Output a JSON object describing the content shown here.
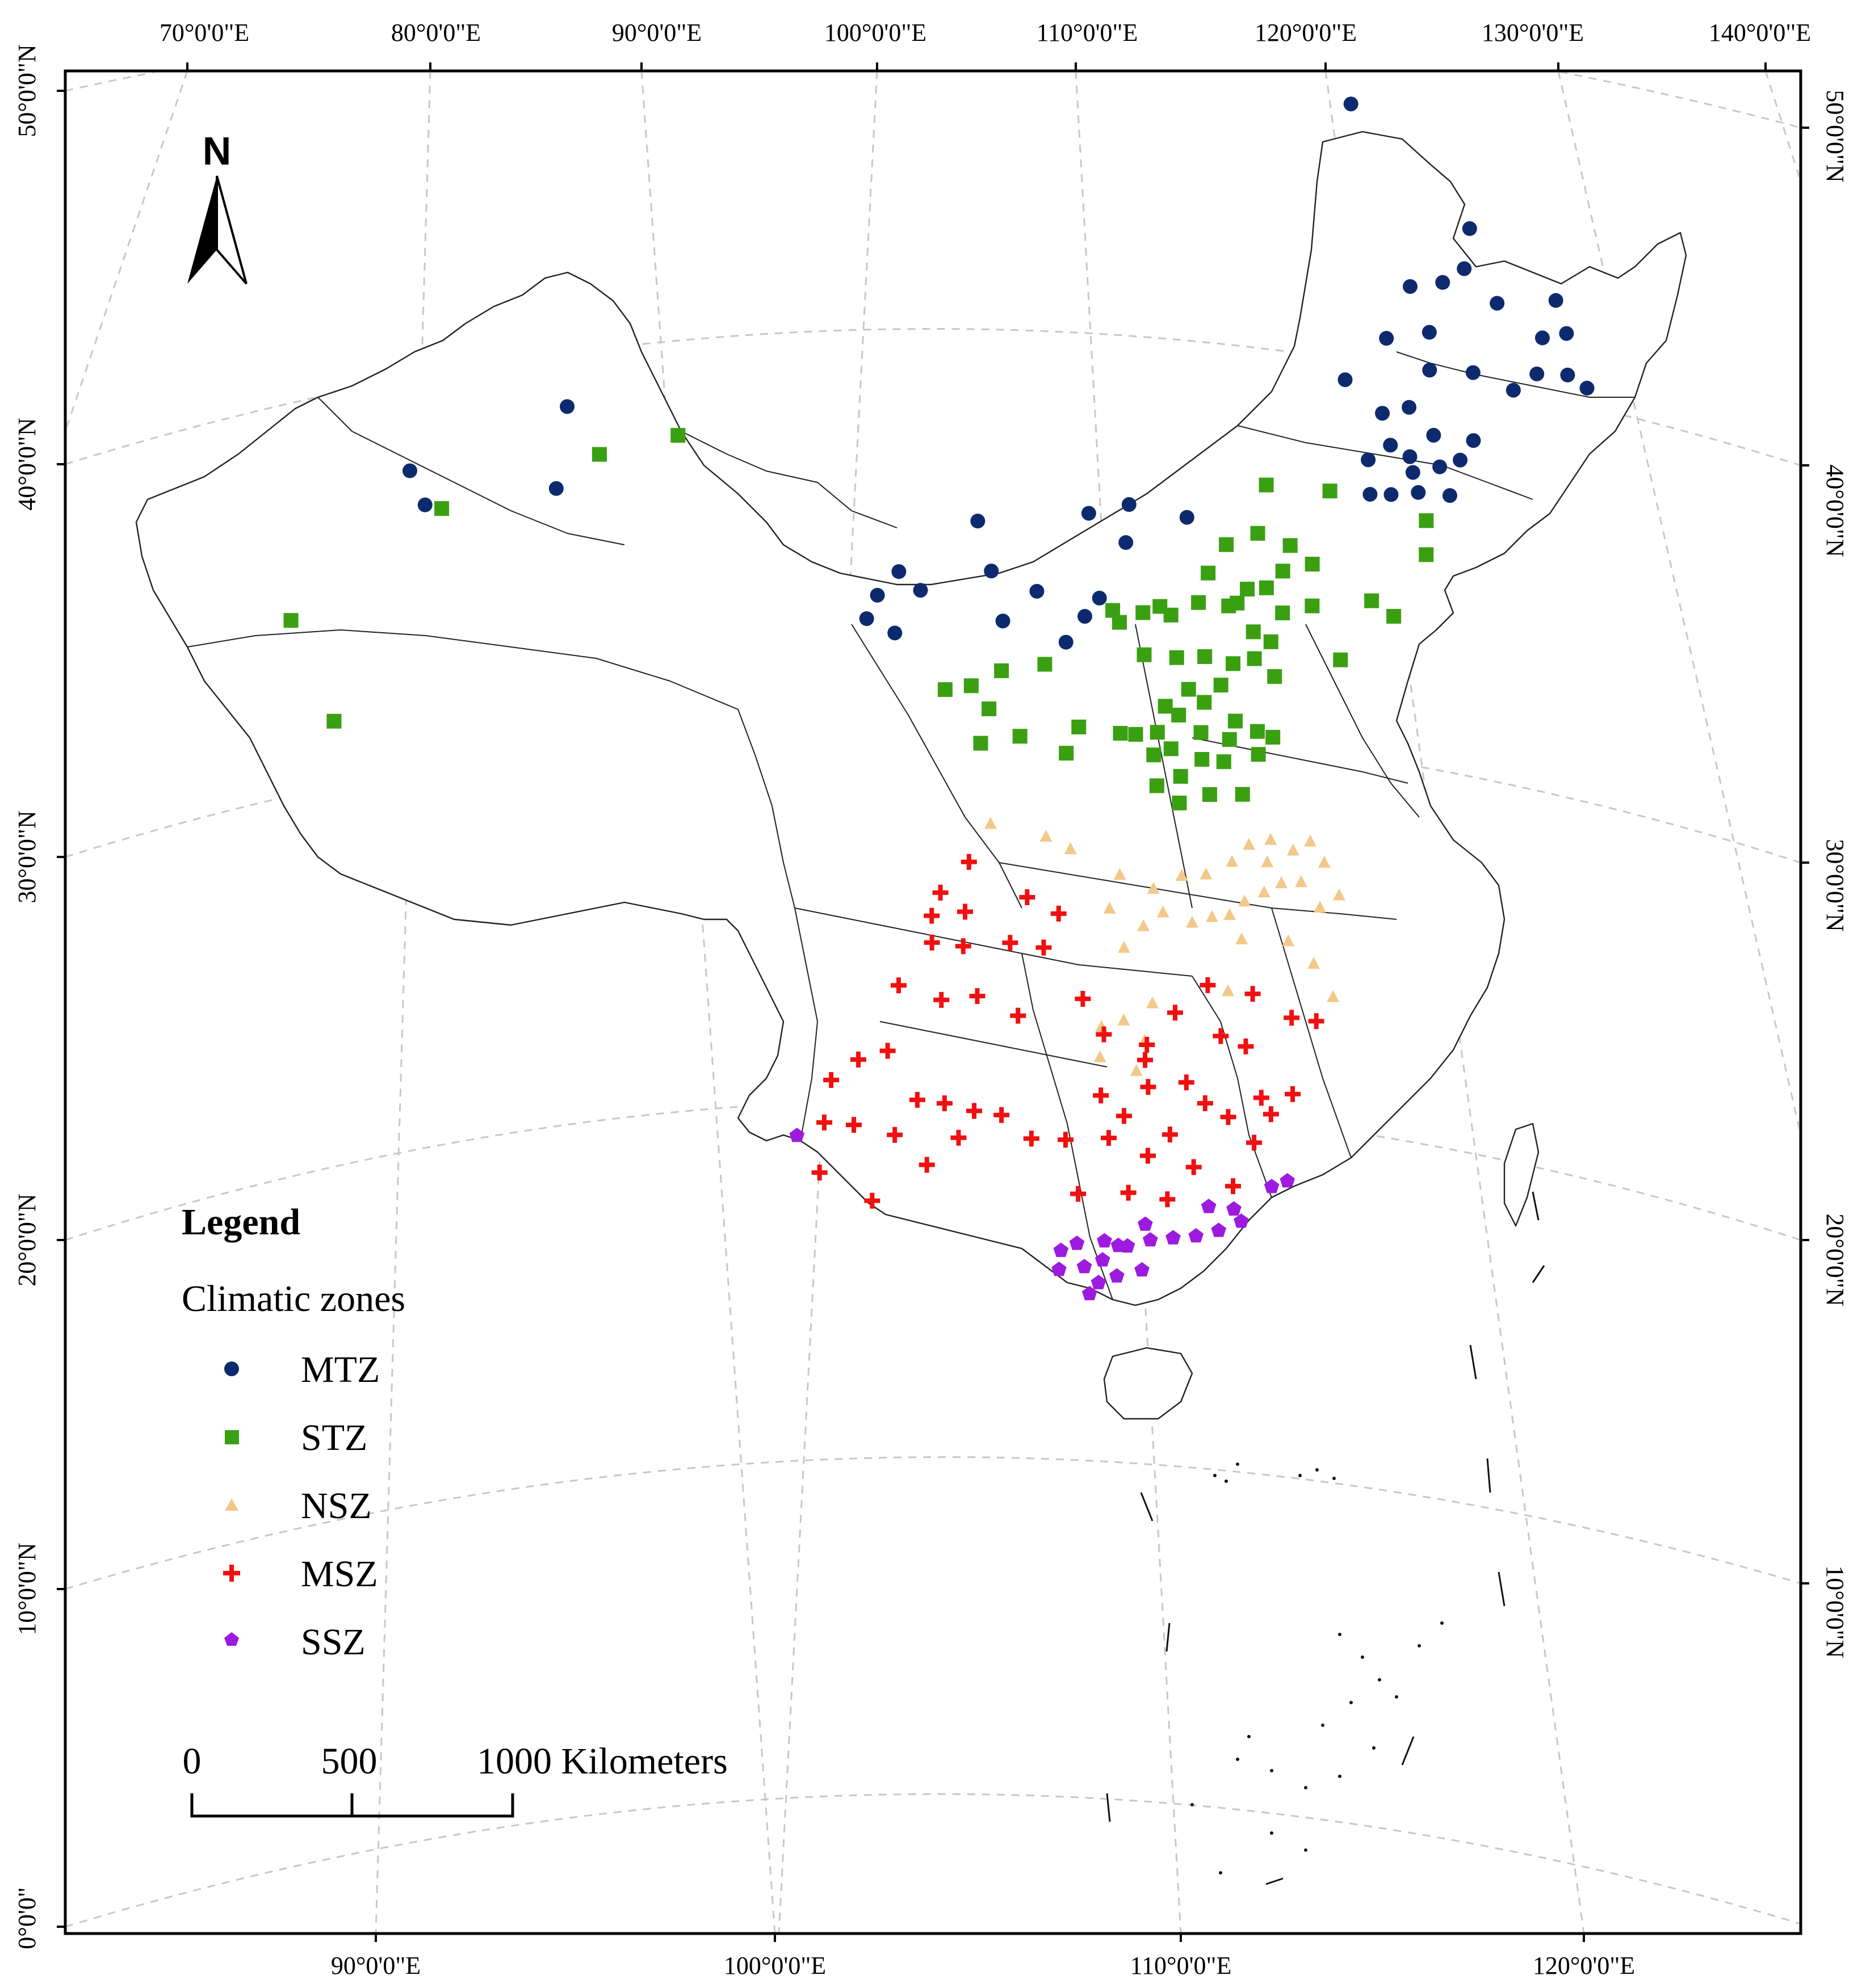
{
  "map": {
    "top_lon_labels": [
      "70°0'0\"E",
      "80°0'0\"E",
      "90°0'0\"E",
      "100°0'0\"E",
      "110°0'0\"E",
      "120°0'0\"E",
      "130°0'0\"E",
      "140°0'0\"E"
    ],
    "bottom_lon_labels": [
      "90°0'0\"E",
      "100°0'0\"E",
      "110°0'0\"E",
      "120°0'0\"E"
    ],
    "left_lat_labels": [
      "50°0'0\"N",
      "40°0'0\"N",
      "30°0'0\"N",
      "20°0'0\"N",
      "10°0'0\"N",
      "0°0'0\""
    ],
    "right_lat_labels": [
      "50°0'0\"N",
      "40°0'0\"N",
      "30°0'0\"N",
      "20°0'0\"N",
      "10°0'0\"N"
    ],
    "north_arrow_label": "N"
  },
  "legend": {
    "title": "Legend",
    "subtitle": "Climatic zones",
    "items": [
      {
        "label": "MTZ",
        "symbol": "circle",
        "color": "#0d2a6e"
      },
      {
        "label": "STZ",
        "symbol": "square",
        "color": "#3aa012"
      },
      {
        "label": "NSZ",
        "symbol": "triangle",
        "color": "#f2c98a"
      },
      {
        "label": "MSZ",
        "symbol": "cross",
        "color": "#f01010"
      },
      {
        "label": "SSZ",
        "symbol": "pentagon",
        "color": "#9d1adf"
      }
    ]
  },
  "scale_bar": {
    "labels": [
      "0",
      "500",
      "1000 Kilometers"
    ],
    "max_km": 1000
  },
  "stations": [
    {
      "zone": "MTZ",
      "points": [
        [
          79.1,
          43.5
        ],
        [
          79.9,
          42.5
        ],
        [
          86.5,
          44.3
        ],
        [
          86.1,
          42.2
        ],
        [
          124.5,
          52.3
        ],
        [
          130.0,
          49.7
        ],
        [
          129.6,
          48.6
        ],
        [
          128.5,
          48.1
        ],
        [
          131.1,
          47.9
        ],
        [
          126.9,
          47.8
        ],
        [
          127.7,
          46.7
        ],
        [
          125.6,
          46.3
        ],
        [
          127.6,
          45.7
        ],
        [
          129.7,
          45.9
        ],
        [
          131.6,
          45.7
        ],
        [
          134.0,
          48.4
        ],
        [
          134.4,
          47.6
        ],
        [
          133.2,
          47.3
        ],
        [
          132.8,
          46.3
        ],
        [
          134.3,
          46.5
        ],
        [
          135.2,
          46.3
        ],
        [
          123.5,
          45.0
        ],
        [
          125.2,
          44.3
        ],
        [
          126.5,
          44.6
        ],
        [
          127.6,
          44.0
        ],
        [
          128.8,
          43.5
        ],
        [
          129.5,
          44.1
        ],
        [
          127.8,
          43.2
        ],
        [
          125.5,
          43.5
        ],
        [
          126.4,
          43.3
        ],
        [
          124.4,
          43.0
        ],
        [
          124.4,
          42.1
        ],
        [
          125.4,
          42.2
        ],
        [
          126.7,
          42.4
        ],
        [
          126.5,
          42.9
        ],
        [
          128.2,
          42.5
        ],
        [
          115.7,
          40.8
        ],
        [
          112.8,
          40.0
        ],
        [
          113.0,
          41.0
        ],
        [
          111.1,
          40.7
        ],
        [
          106.5,
          39.1
        ],
        [
          105.9,
          40.4
        ],
        [
          103.2,
          38.6
        ],
        [
          102.2,
          39.1
        ],
        [
          101.2,
          38.5
        ],
        [
          100.7,
          37.9
        ],
        [
          102.0,
          37.5
        ],
        [
          107.0,
          37.8
        ],
        [
          108.6,
          38.6
        ],
        [
          110.8,
          38.0
        ],
        [
          109.9,
          37.3
        ],
        [
          111.5,
          38.5
        ]
      ]
    },
    {
      "zone": "STZ",
      "points": [
        [
          73.8,
          40.4
        ],
        [
          76.1,
          37.4
        ],
        [
          80.7,
          42.3
        ],
        [
          88.1,
          42.9
        ],
        [
          91.8,
          43.1
        ],
        [
          119.5,
          41.9
        ],
        [
          122.5,
          42.0
        ],
        [
          127.0,
          41.7
        ],
        [
          126.9,
          40.8
        ],
        [
          119.0,
          40.6
        ],
        [
          120.5,
          40.4
        ],
        [
          121.5,
          40.0
        ],
        [
          117.5,
          40.2
        ],
        [
          118.4,
          39.1
        ],
        [
          120.1,
          39.7
        ],
        [
          116.6,
          39.4
        ],
        [
          119.3,
          39.2
        ],
        [
          117.9,
          38.7
        ],
        [
          120.0,
          38.6
        ],
        [
          121.4,
          38.9
        ],
        [
          124.2,
          39.3
        ],
        [
          125.2,
          39.0
        ],
        [
          112.1,
          38.2
        ],
        [
          113.5,
          38.2
        ],
        [
          112.4,
          37.9
        ],
        [
          114.3,
          38.4
        ],
        [
          114.8,
          38.2
        ],
        [
          116.1,
          38.6
        ],
        [
          117.5,
          38.6
        ],
        [
          118.6,
          38.0
        ],
        [
          119.4,
          37.8
        ],
        [
          122.6,
          37.6
        ],
        [
          113.5,
          37.1
        ],
        [
          115.0,
          37.1
        ],
        [
          116.3,
          37.2
        ],
        [
          117.6,
          37.1
        ],
        [
          118.6,
          37.3
        ],
        [
          119.5,
          36.9
        ],
        [
          117.0,
          36.5
        ],
        [
          115.5,
          36.3
        ],
        [
          116.2,
          36.0
        ],
        [
          114.4,
          35.8
        ],
        [
          115.0,
          35.6
        ],
        [
          117.6,
          35.6
        ],
        [
          118.6,
          35.4
        ],
        [
          119.3,
          35.3
        ],
        [
          116.0,
          35.2
        ],
        [
          117.3,
          35.1
        ],
        [
          118.6,
          34.8
        ],
        [
          117.0,
          34.5
        ],
        [
          112.3,
          35.0
        ],
        [
          113.0,
          35.0
        ],
        [
          114.0,
          35.1
        ],
        [
          113.8,
          34.5
        ],
        [
          114.6,
          34.7
        ],
        [
          116.0,
          34.5
        ],
        [
          104.3,
          36.0
        ],
        [
          105.5,
          36.1
        ],
        [
          106.9,
          36.5
        ],
        [
          106.3,
          35.5
        ],
        [
          108.9,
          36.7
        ],
        [
          107.7,
          34.8
        ],
        [
          105.9,
          34.6
        ],
        [
          109.8,
          34.4
        ],
        [
          110.4,
          35.1
        ],
        [
          115.0,
          34.0
        ],
        [
          113.9,
          33.7
        ],
        [
          114.9,
          33.3
        ],
        [
          116.3,
          33.6
        ],
        [
          117.8,
          33.7
        ]
      ]
    },
    {
      "zone": "NSZ",
      "points": [
        [
          106.3,
          32.5
        ],
        [
          108.8,
          32.2
        ],
        [
          109.9,
          31.9
        ],
        [
          112.1,
          31.3
        ],
        [
          113.6,
          31.0
        ],
        [
          114.9,
          31.4
        ],
        [
          116.0,
          31.5
        ],
        [
          117.2,
          31.9
        ],
        [
          118.8,
          32.0
        ],
        [
          118.0,
          32.4
        ],
        [
          119.0,
          32.6
        ],
        [
          120.0,
          32.4
        ],
        [
          120.8,
          32.7
        ],
        [
          121.4,
          32.2
        ],
        [
          122.0,
          31.4
        ],
        [
          121.1,
          31.0
        ],
        [
          120.3,
          31.6
        ],
        [
          119.4,
          31.5
        ],
        [
          118.6,
          31.2
        ],
        [
          117.7,
          30.9
        ],
        [
          117.0,
          30.5
        ],
        [
          116.2,
          30.4
        ],
        [
          115.3,
          30.2
        ],
        [
          114.0,
          30.4
        ],
        [
          113.1,
          30.0
        ],
        [
          111.6,
          30.4
        ],
        [
          112.2,
          29.4
        ],
        [
          117.5,
          29.9
        ],
        [
          119.6,
          30.0
        ],
        [
          120.7,
          29.5
        ],
        [
          121.5,
          28.7
        ],
        [
          116.8,
          28.5
        ],
        [
          113.4,
          28.0
        ],
        [
          111.1,
          27.3
        ],
        [
          112.1,
          27.5
        ],
        [
          113.0,
          27.0
        ],
        [
          112.6,
          26.2
        ],
        [
          111.0,
          26.5
        ]
      ]
    },
    {
      "zone": "MSZ",
      "points": [
        [
          104.0,
          30.7
        ],
        [
          105.3,
          31.5
        ],
        [
          103.6,
          30.1
        ],
        [
          105.1,
          30.2
        ],
        [
          107.9,
          30.6
        ],
        [
          109.3,
          30.2
        ],
        [
          103.6,
          29.4
        ],
        [
          105.0,
          29.3
        ],
        [
          107.1,
          29.4
        ],
        [
          108.6,
          29.3
        ],
        [
          102.1,
          28.3
        ],
        [
          104.0,
          27.9
        ],
        [
          105.6,
          28.0
        ],
        [
          107.4,
          27.5
        ],
        [
          110.3,
          28.0
        ],
        [
          111.2,
          27.1
        ],
        [
          113.1,
          26.9
        ],
        [
          114.4,
          27.8
        ],
        [
          115.9,
          28.6
        ],
        [
          117.9,
          28.5
        ],
        [
          119.6,
          28.0
        ],
        [
          120.7,
          28.0
        ],
        [
          116.4,
          27.3
        ],
        [
          117.5,
          27.1
        ],
        [
          113.0,
          26.5
        ],
        [
          111.0,
          25.5
        ],
        [
          112.0,
          25.0
        ],
        [
          113.1,
          25.8
        ],
        [
          114.8,
          26.0
        ],
        [
          115.6,
          25.5
        ],
        [
          114.0,
          24.6
        ],
        [
          113.0,
          24.0
        ],
        [
          111.3,
          24.4
        ],
        [
          109.4,
          24.3
        ],
        [
          107.9,
          24.3
        ],
        [
          106.6,
          24.9
        ],
        [
          105.4,
          25.0
        ],
        [
          104.1,
          25.2
        ],
        [
          102.9,
          25.3
        ],
        [
          101.6,
          26.6
        ],
        [
          100.3,
          26.4
        ],
        [
          99.1,
          25.9
        ],
        [
          98.8,
          24.8
        ],
        [
          100.1,
          24.7
        ],
        [
          101.9,
          24.4
        ],
        [
          103.3,
          23.6
        ],
        [
          104.7,
          24.3
        ],
        [
          116.6,
          25.2
        ],
        [
          117.7,
          24.6
        ],
        [
          118.5,
          25.4
        ],
        [
          119.5,
          26.0
        ],
        [
          118.1,
          25.8
        ],
        [
          112.1,
          23.0
        ],
        [
          113.8,
          22.9
        ],
        [
          115.0,
          23.8
        ],
        [
          116.7,
          23.4
        ],
        [
          109.9,
          22.9
        ],
        [
          100.9,
          22.7
        ],
        [
          98.6,
          23.5
        ]
      ]
    },
    {
      "zone": "SSZ",
      "points": [
        [
          97.6,
          24.5
        ],
        [
          110.1,
          21.0
        ],
        [
          109.8,
          21.6
        ],
        [
          110.3,
          20.3
        ],
        [
          111.0,
          21.7
        ],
        [
          112.0,
          21.6
        ],
        [
          113.0,
          21.8
        ],
        [
          114.0,
          21.9
        ],
        [
          115.0,
          22.0
        ],
        [
          116.0,
          22.2
        ],
        [
          117.0,
          22.5
        ],
        [
          118.4,
          23.5
        ],
        [
          119.1,
          23.7
        ],
        [
          115.6,
          22.8
        ],
        [
          116.7,
          22.8
        ],
        [
          111.6,
          21.6
        ],
        [
          112.8,
          22.2
        ],
        [
          111.5,
          20.8
        ],
        [
          110.9,
          21.2
        ],
        [
          109.1,
          21.4
        ],
        [
          109.0,
          20.9
        ],
        [
          110.7,
          20.6
        ],
        [
          112.6,
          21.0
        ]
      ]
    }
  ]
}
